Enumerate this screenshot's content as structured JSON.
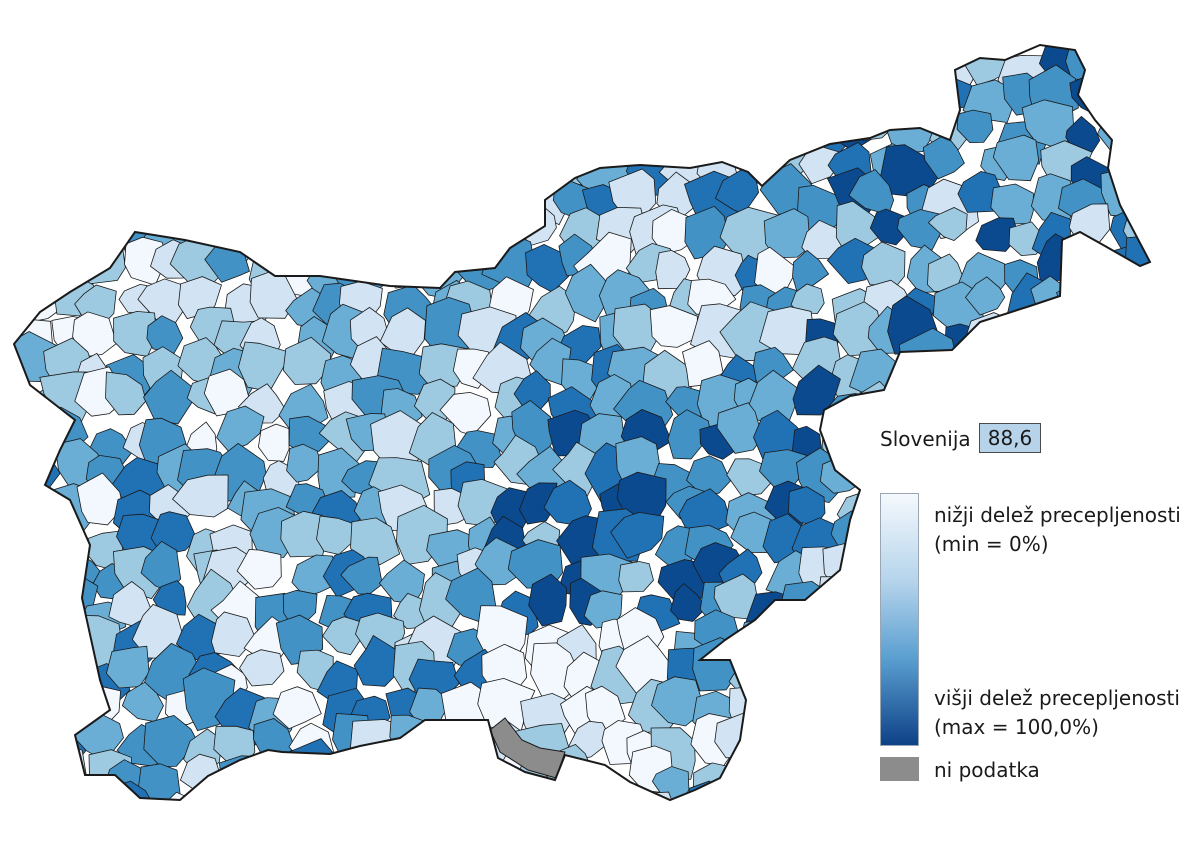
{
  "map": {
    "country_name": "Slovenija",
    "national_value": "88,6",
    "national_value_color": "#b6d3ea",
    "no_data_color": "#8c8c8c",
    "border_color": "#1a1a1a",
    "color_scale": [
      "#f2f8fd",
      "#d2e4f3",
      "#9ecae1",
      "#6aaed6",
      "#4292c6",
      "#2171b5",
      "#0c4a8f"
    ]
  },
  "legend": {
    "low_line1": "nižji delež precepljenosti",
    "low_line2": "(min = 0%)",
    "high_line1": "višji delež precepljenosti",
    "high_line2": "(max = 100,0%)",
    "no_data_label": "ni podatka",
    "min_value": "0%",
    "max_value": "100,0%"
  }
}
